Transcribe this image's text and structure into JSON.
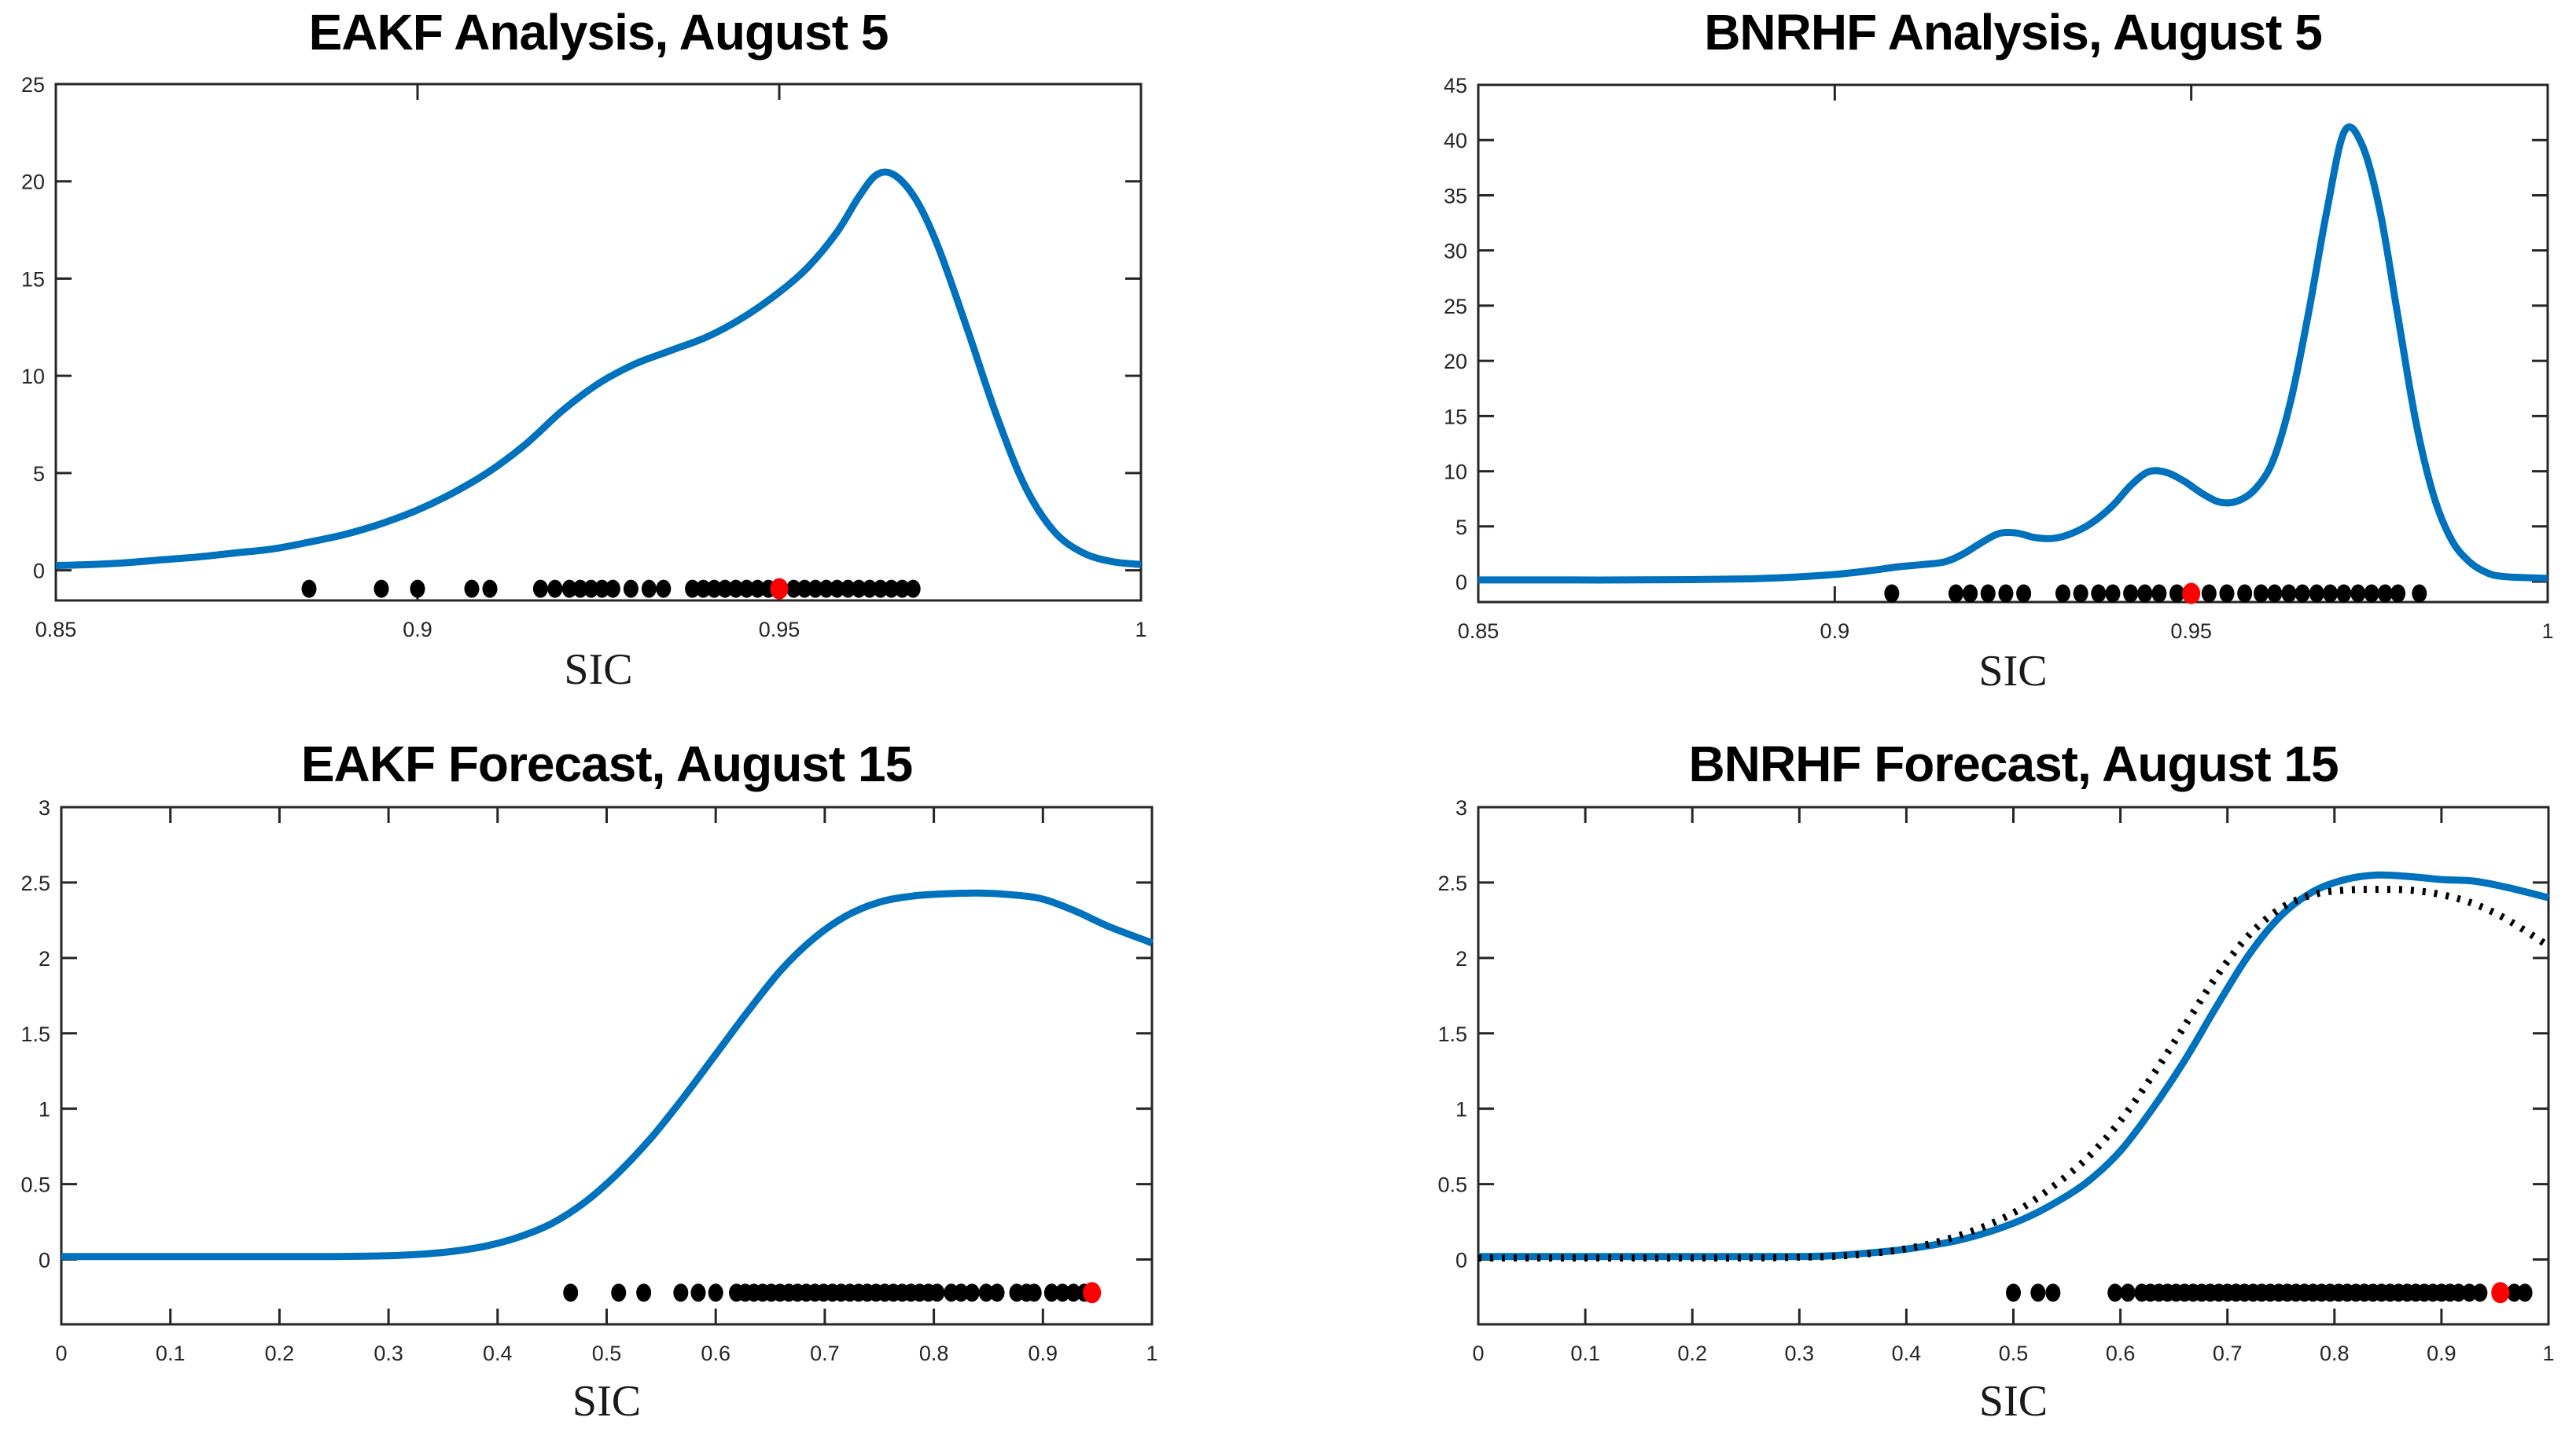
{
  "figure": {
    "rows": 2,
    "cols": 2,
    "background": "#ffffff"
  },
  "colors": {
    "curve_blue": "#0072BD",
    "dotted_black": "#000000",
    "ensemble_marker": "#000000",
    "observation_marker": "#FF0000",
    "axis": "#262626"
  },
  "chart_data": [
    {
      "id": "eakf-analysis",
      "type": "line",
      "title": "EAKF Analysis, August 5",
      "xlabel": "SIC",
      "xlim": [
        0.85,
        1.0
      ],
      "ylim": [
        -1.55,
        25
      ],
      "grid": false,
      "legend": null,
      "xticks": {
        "values": [
          0.85,
          0.9,
          0.95,
          1.0
        ],
        "labels": [
          "0.85",
          "0.9",
          "0.95",
          "1"
        ]
      },
      "yticks": {
        "values": [
          0,
          5,
          10,
          15,
          20,
          25
        ],
        "labels": [
          "0",
          "5",
          "10",
          "15",
          "20",
          "25"
        ]
      },
      "series": [
        {
          "name": "blue-solid-density",
          "style": "solid",
          "color": "#0072BD",
          "x": [
            0.85,
            0.855,
            0.86,
            0.865,
            0.87,
            0.875,
            0.88,
            0.885,
            0.89,
            0.895,
            0.9,
            0.905,
            0.91,
            0.915,
            0.92,
            0.925,
            0.93,
            0.935,
            0.94,
            0.945,
            0.95,
            0.954,
            0.958,
            0.961,
            0.9635,
            0.966,
            0.969,
            0.972,
            0.976,
            0.98,
            0.984,
            0.988,
            0.992,
            0.996,
            1.0
          ],
          "y": [
            0.25,
            0.3,
            0.4,
            0.55,
            0.7,
            0.9,
            1.1,
            1.45,
            1.85,
            2.4,
            3.1,
            4.0,
            5.1,
            6.5,
            8.2,
            9.6,
            10.6,
            11.3,
            12.0,
            13.0,
            14.3,
            15.6,
            17.4,
            19.2,
            20.35,
            20.3,
            19.0,
            16.6,
            12.4,
            8.0,
            4.3,
            2.0,
            0.9,
            0.45,
            0.3
          ]
        }
      ],
      "rug": {
        "marker_y": -0.95,
        "ensemble_x": [
          0.885,
          0.895,
          0.9,
          0.9075,
          0.91,
          0.917,
          0.919,
          0.921,
          0.9225,
          0.924,
          0.9255,
          0.927,
          0.9295,
          0.932,
          0.934,
          0.938,
          0.9395,
          0.941,
          0.9425,
          0.944,
          0.9455,
          0.947,
          0.9485,
          0.952,
          0.9535,
          0.955,
          0.9565,
          0.958,
          0.9595,
          0.961,
          0.9625,
          0.964,
          0.9655,
          0.967,
          0.9685
        ],
        "observation_x": 0.95
      }
    },
    {
      "id": "bnrhf-analysis",
      "type": "line",
      "title": "BNRHF Analysis, August 5",
      "xlabel": "SIC",
      "xlim": [
        0.85,
        1.0
      ],
      "ylim": [
        -1.85,
        45
      ],
      "grid": false,
      "legend": null,
      "xticks": {
        "values": [
          0.85,
          0.9,
          0.95,
          1.0
        ],
        "labels": [
          "0.85",
          "0.9",
          "0.95",
          "1"
        ]
      },
      "yticks": {
        "values": [
          0,
          5,
          10,
          15,
          20,
          25,
          30,
          35,
          40,
          45
        ],
        "labels": [
          "0",
          "5",
          "10",
          "15",
          "20",
          "25",
          "30",
          "35",
          "40",
          "45"
        ]
      },
      "series": [
        {
          "name": "blue-solid-density",
          "style": "solid",
          "color": "#0072BD",
          "x": [
            0.85,
            0.86,
            0.87,
            0.88,
            0.888,
            0.894,
            0.9,
            0.905,
            0.909,
            0.9125,
            0.9155,
            0.918,
            0.9205,
            0.923,
            0.9255,
            0.928,
            0.9305,
            0.933,
            0.936,
            0.939,
            0.9415,
            0.944,
            0.9465,
            0.949,
            0.9515,
            0.954,
            0.9565,
            0.959,
            0.9615,
            0.964,
            0.9665,
            0.969,
            0.9715,
            0.974,
            0.9765,
            0.979,
            0.9815,
            0.984,
            0.9865,
            0.989,
            0.9915,
            0.994,
            1.0
          ],
          "y": [
            0.15,
            0.15,
            0.15,
            0.18,
            0.25,
            0.4,
            0.65,
            1.0,
            1.35,
            1.55,
            1.8,
            2.5,
            3.5,
            4.35,
            4.4,
            4.0,
            3.9,
            4.3,
            5.3,
            6.9,
            8.7,
            9.95,
            9.9,
            9.1,
            8.0,
            7.2,
            7.3,
            8.4,
            11.0,
            16.5,
            24.5,
            33.5,
            40.8,
            39.5,
            33.5,
            24.0,
            14.5,
            7.8,
            3.8,
            1.8,
            0.8,
            0.45,
            0.3
          ]
        }
      ],
      "rug": {
        "marker_y": -1.07,
        "ensemble_x": [
          0.908,
          0.917,
          0.919,
          0.9215,
          0.924,
          0.9265,
          0.932,
          0.9345,
          0.937,
          0.939,
          0.9415,
          0.9435,
          0.9455,
          0.948,
          0.9525,
          0.955,
          0.9575,
          0.9598,
          0.9617,
          0.9637,
          0.9656,
          0.9676,
          0.9695,
          0.9714,
          0.9734,
          0.9753,
          0.9772,
          0.979,
          0.982
        ],
        "observation_x": 0.95
      }
    },
    {
      "id": "eakf-forecast",
      "type": "line",
      "title": "EAKF Forecast, August 15",
      "xlabel": "SIC",
      "xlim": [
        0.0,
        1.0
      ],
      "ylim": [
        -0.43,
        3
      ],
      "grid": false,
      "legend": null,
      "xticks": {
        "values": [
          0,
          0.1,
          0.2,
          0.3,
          0.4,
          0.5,
          0.6,
          0.7,
          0.8,
          0.9,
          1.0
        ],
        "labels": [
          "0",
          "0.1",
          "0.2",
          "0.3",
          "0.4",
          "0.5",
          "0.6",
          "0.7",
          "0.8",
          "0.9",
          "1"
        ]
      },
      "yticks": {
        "values": [
          0,
          0.5,
          1,
          1.5,
          2,
          2.5,
          3
        ],
        "labels": [
          "0",
          "0.5",
          "1",
          "1.5",
          "2",
          "2.5",
          "3"
        ]
      },
      "series": [
        {
          "name": "blue-solid-density",
          "style": "solid",
          "color": "#0072BD",
          "x": [
            0.0,
            0.05,
            0.1,
            0.15,
            0.2,
            0.25,
            0.3,
            0.33,
            0.36,
            0.39,
            0.42,
            0.45,
            0.48,
            0.51,
            0.54,
            0.57,
            0.6,
            0.63,
            0.66,
            0.69,
            0.72,
            0.75,
            0.78,
            0.81,
            0.84,
            0.87,
            0.9,
            0.93,
            0.96,
            1.0
          ],
          "y": [
            0.02,
            0.02,
            0.02,
            0.02,
            0.02,
            0.02,
            0.025,
            0.035,
            0.055,
            0.09,
            0.15,
            0.24,
            0.38,
            0.57,
            0.8,
            1.07,
            1.36,
            1.65,
            1.92,
            2.13,
            2.28,
            2.37,
            2.41,
            2.425,
            2.43,
            2.42,
            2.39,
            2.31,
            2.21,
            2.1
          ]
        }
      ],
      "rug": {
        "marker_y": -0.22,
        "ensemble_x": [
          0.467,
          0.511,
          0.534,
          0.568,
          0.584,
          0.6,
          0.619,
          0.627,
          0.635,
          0.643,
          0.651,
          0.659,
          0.667,
          0.675,
          0.683,
          0.691,
          0.699,
          0.707,
          0.715,
          0.723,
          0.731,
          0.739,
          0.747,
          0.755,
          0.763,
          0.771,
          0.779,
          0.787,
          0.795,
          0.803,
          0.816,
          0.825,
          0.835,
          0.848,
          0.858,
          0.876,
          0.885,
          0.892,
          0.908,
          0.918,
          0.928,
          0.938
        ],
        "observation_x": 0.945
      }
    },
    {
      "id": "bnrhf-forecast",
      "type": "line",
      "title": "BNRHF Forecast, August 15",
      "xlabel": "SIC",
      "xlim": [
        0.0,
        1.0
      ],
      "ylim": [
        -0.43,
        3
      ],
      "grid": false,
      "legend": null,
      "xticks": {
        "values": [
          0,
          0.1,
          0.2,
          0.3,
          0.4,
          0.5,
          0.6,
          0.7,
          0.8,
          0.9,
          1.0
        ],
        "labels": [
          "0",
          "0.1",
          "0.2",
          "0.3",
          "0.4",
          "0.5",
          "0.6",
          "0.7",
          "0.8",
          "0.9",
          "1"
        ]
      },
      "yticks": {
        "values": [
          0,
          0.5,
          1,
          1.5,
          2,
          2.5,
          3
        ],
        "labels": [
          "0",
          "0.5",
          "1",
          "1.5",
          "2",
          "2.5",
          "3"
        ]
      },
      "series": [
        {
          "name": "blue-solid-density",
          "style": "solid",
          "color": "#0072BD",
          "x": [
            0.0,
            0.05,
            0.1,
            0.15,
            0.2,
            0.25,
            0.3,
            0.33,
            0.36,
            0.39,
            0.42,
            0.45,
            0.48,
            0.51,
            0.54,
            0.57,
            0.6,
            0.63,
            0.66,
            0.69,
            0.72,
            0.75,
            0.78,
            0.81,
            0.84,
            0.87,
            0.9,
            0.93,
            0.96,
            1.0
          ],
          "y": [
            0.02,
            0.02,
            0.02,
            0.02,
            0.02,
            0.02,
            0.02,
            0.025,
            0.04,
            0.06,
            0.09,
            0.13,
            0.19,
            0.27,
            0.38,
            0.52,
            0.72,
            1.0,
            1.32,
            1.68,
            2.02,
            2.28,
            2.44,
            2.52,
            2.55,
            2.54,
            2.52,
            2.51,
            2.47,
            2.4
          ]
        },
        {
          "name": "black-dotted-density",
          "style": "dotted",
          "color": "#000000",
          "x": [
            0.0,
            0.05,
            0.1,
            0.15,
            0.2,
            0.25,
            0.3,
            0.33,
            0.36,
            0.39,
            0.42,
            0.45,
            0.48,
            0.51,
            0.54,
            0.57,
            0.6,
            0.63,
            0.66,
            0.69,
            0.72,
            0.75,
            0.78,
            0.81,
            0.84,
            0.87,
            0.9,
            0.93,
            0.96,
            1.0
          ],
          "y": [
            0.01,
            0.01,
            0.01,
            0.01,
            0.01,
            0.01,
            0.015,
            0.02,
            0.035,
            0.06,
            0.1,
            0.16,
            0.24,
            0.35,
            0.5,
            0.68,
            0.92,
            1.22,
            1.55,
            1.88,
            2.15,
            2.33,
            2.42,
            2.45,
            2.455,
            2.45,
            2.42,
            2.36,
            2.26,
            2.08
          ]
        }
      ],
      "rug": {
        "marker_y": -0.22,
        "ensemble_x": [
          0.5,
          0.523,
          0.537,
          0.595,
          0.607,
          0.62,
          0.628,
          0.636,
          0.644,
          0.652,
          0.66,
          0.668,
          0.676,
          0.684,
          0.692,
          0.7,
          0.708,
          0.716,
          0.724,
          0.732,
          0.74,
          0.748,
          0.756,
          0.764,
          0.772,
          0.78,
          0.788,
          0.796,
          0.804,
          0.812,
          0.82,
          0.828,
          0.836,
          0.844,
          0.852,
          0.86,
          0.868,
          0.876,
          0.884,
          0.892,
          0.9,
          0.908,
          0.916,
          0.926,
          0.936,
          0.968,
          0.978
        ],
        "observation_x": 0.955
      }
    }
  ]
}
